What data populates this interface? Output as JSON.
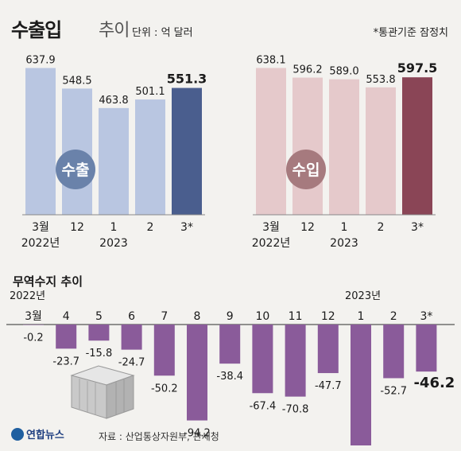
{
  "header": {
    "title_main": "수출입",
    "title_sub": "추이",
    "unit": "단위 : 억 달러",
    "note": "*통관기준 잠정치"
  },
  "chart_data": [
    {
      "type": "bar",
      "label": "수출",
      "categories": [
        "3월",
        "12",
        "1",
        "2",
        "3*"
      ],
      "year_labels": [
        "2022년",
        "2023"
      ],
      "values": [
        637.9,
        548.5,
        463.8,
        501.1,
        551.3
      ],
      "colors": {
        "bar": "#b9c6e1",
        "highlight": "#4a5e8e",
        "badge": "#6a82aa"
      }
    },
    {
      "type": "bar",
      "label": "수입",
      "categories": [
        "3월",
        "12",
        "1",
        "2",
        "3*"
      ],
      "year_labels": [
        "2022년",
        "2023"
      ],
      "values": [
        638.1,
        596.2,
        589.0,
        553.8,
        597.5
      ],
      "colors": {
        "bar": "#e5c9cb",
        "highlight": "#8a4556",
        "badge": "#a67a7e"
      }
    },
    {
      "type": "bar",
      "title": "무역수지 추이",
      "categories": [
        "3월",
        "4",
        "5",
        "6",
        "7",
        "8",
        "9",
        "10",
        "11",
        "12",
        "1",
        "2",
        "3*"
      ],
      "year_labels": [
        "2022년",
        "2023년"
      ],
      "values": [
        -0.2,
        -23.7,
        -15.8,
        -24.7,
        -50.2,
        -94.2,
        -38.4,
        -67.4,
        -70.8,
        -47.7,
        -125.1,
        -52.7,
        -46.2
      ],
      "colors": {
        "bar": "#8a5b9a",
        "axis": "#555555"
      }
    }
  ],
  "footer": {
    "logo": "연합뉴스",
    "source": "자료 : 산업통상자원부, 관세청"
  }
}
